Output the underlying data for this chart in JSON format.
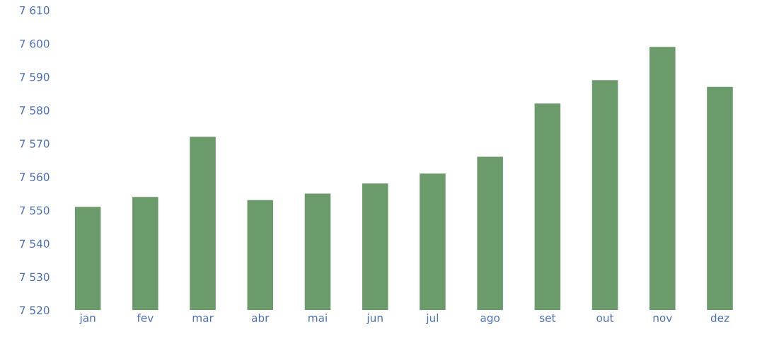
{
  "chart_data": {
    "type": "bar",
    "categories": [
      "jan",
      "fev",
      "mar",
      "abr",
      "mai",
      "jun",
      "jul",
      "ago",
      "set",
      "out",
      "nov",
      "dez"
    ],
    "values": [
      7551,
      7554,
      7572,
      7553,
      7555,
      7558,
      7561,
      7566,
      7582,
      7589,
      7599,
      7587
    ],
    "color": "#6b9a6b",
    "ylim": [
      7520,
      7610
    ],
    "yticks": [
      {
        "value": 7520,
        "label": "7 520"
      },
      {
        "value": 7530,
        "label": "7 530"
      },
      {
        "value": 7540,
        "label": "7 540"
      },
      {
        "value": 7550,
        "label": "7 550"
      },
      {
        "value": 7560,
        "label": "7 560"
      },
      {
        "value": 7570,
        "label": "7 570"
      },
      {
        "value": 7580,
        "label": "7 580"
      },
      {
        "value": 7590,
        "label": "7 590"
      },
      {
        "value": 7600,
        "label": "7 600"
      },
      {
        "value": 7610,
        "label": "7 610"
      }
    ],
    "grid": false
  }
}
